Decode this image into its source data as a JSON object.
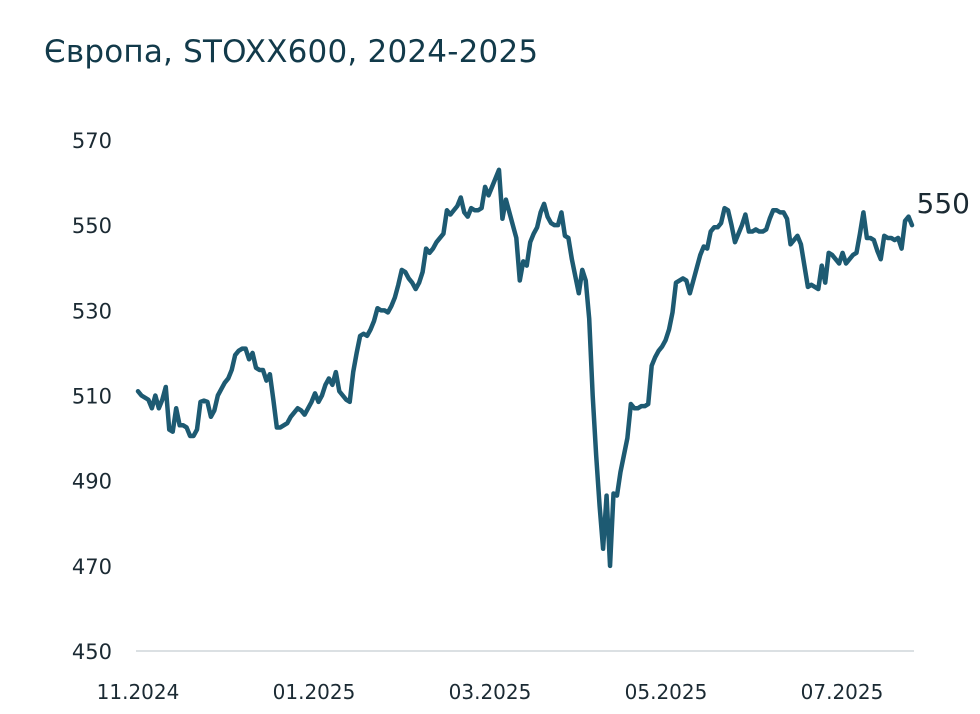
{
  "chart_data": {
    "type": "line",
    "title": "Європа, STOXX600, 2024-2025",
    "xlabel": "",
    "ylabel": "",
    "ylim": [
      450,
      570
    ],
    "y_ticks": [
      450,
      470,
      490,
      510,
      530,
      550,
      570
    ],
    "x_ticks": [
      "11.2024",
      "01.2025",
      "03.2025",
      "05.2025",
      "07.2025"
    ],
    "grid": false,
    "line_color": "#1d5a72",
    "last_value_label": "550",
    "series": [
      {
        "values": [
          511,
          510,
          509.5,
          509,
          507,
          510,
          507,
          509,
          512,
          502,
          501.5,
          507,
          503,
          503,
          502.5,
          500.5,
          500.5,
          502,
          508.5,
          508.8,
          508.5,
          505,
          506.5,
          510,
          511.5,
          513,
          514,
          516,
          519.5,
          520.5,
          521,
          521,
          518.5,
          520,
          516.5,
          516,
          516,
          513.5,
          515,
          509,
          502.5,
          502.5,
          503,
          503.5,
          505,
          506,
          507,
          506.5,
          505.5,
          507,
          508.5,
          510.5,
          508.5,
          510,
          512.5,
          514,
          512.5,
          515.5,
          511,
          510,
          509,
          508.5,
          515.5,
          520,
          524,
          524.5,
          524,
          525.5,
          527.5,
          530.5,
          530,
          530,
          529.5,
          531,
          533,
          536,
          539.5,
          539,
          537.5,
          536.5,
          535,
          536.5,
          539,
          544.5,
          543.5,
          544.5,
          546,
          547,
          548,
          553.5,
          552.5,
          553.5,
          554.5,
          556.5,
          553,
          552,
          554,
          553.5,
          553.5,
          554,
          559,
          557,
          559,
          561,
          563,
          551.5,
          556,
          553,
          550,
          547,
          537,
          541.5,
          540.5,
          546,
          548,
          549.5,
          553,
          555,
          552,
          550.5,
          550,
          550,
          553,
          547.5,
          547,
          542,
          538,
          534,
          539.5,
          537,
          528,
          510,
          496,
          484,
          474,
          486.5,
          470,
          487,
          486.5,
          492,
          496,
          500,
          508,
          507,
          507,
          507.5,
          507.5,
          508,
          517,
          519,
          520.5,
          521.5,
          523,
          525.5,
          529.5,
          536.5,
          537,
          537.5,
          537,
          534,
          537,
          540,
          543,
          545,
          544.5,
          548.5,
          549.5,
          549.5,
          550.5,
          554,
          553.5,
          550,
          546,
          548,
          550,
          552.5,
          548.5,
          548.5,
          549,
          548.5,
          548.5,
          549,
          551.5,
          553.5,
          553.5,
          553,
          553,
          551.5,
          545.5,
          546.5,
          547.5,
          545.5,
          540.5,
          535.5,
          536,
          535.5,
          535,
          540.5,
          536.5,
          543.5,
          543,
          542,
          541,
          543.5,
          541,
          542,
          543,
          543.5,
          548,
          553,
          547,
          547,
          546.5,
          544,
          542,
          547.5,
          547,
          547,
          546.5,
          547,
          544.5,
          551,
          552,
          550
        ]
      }
    ]
  }
}
